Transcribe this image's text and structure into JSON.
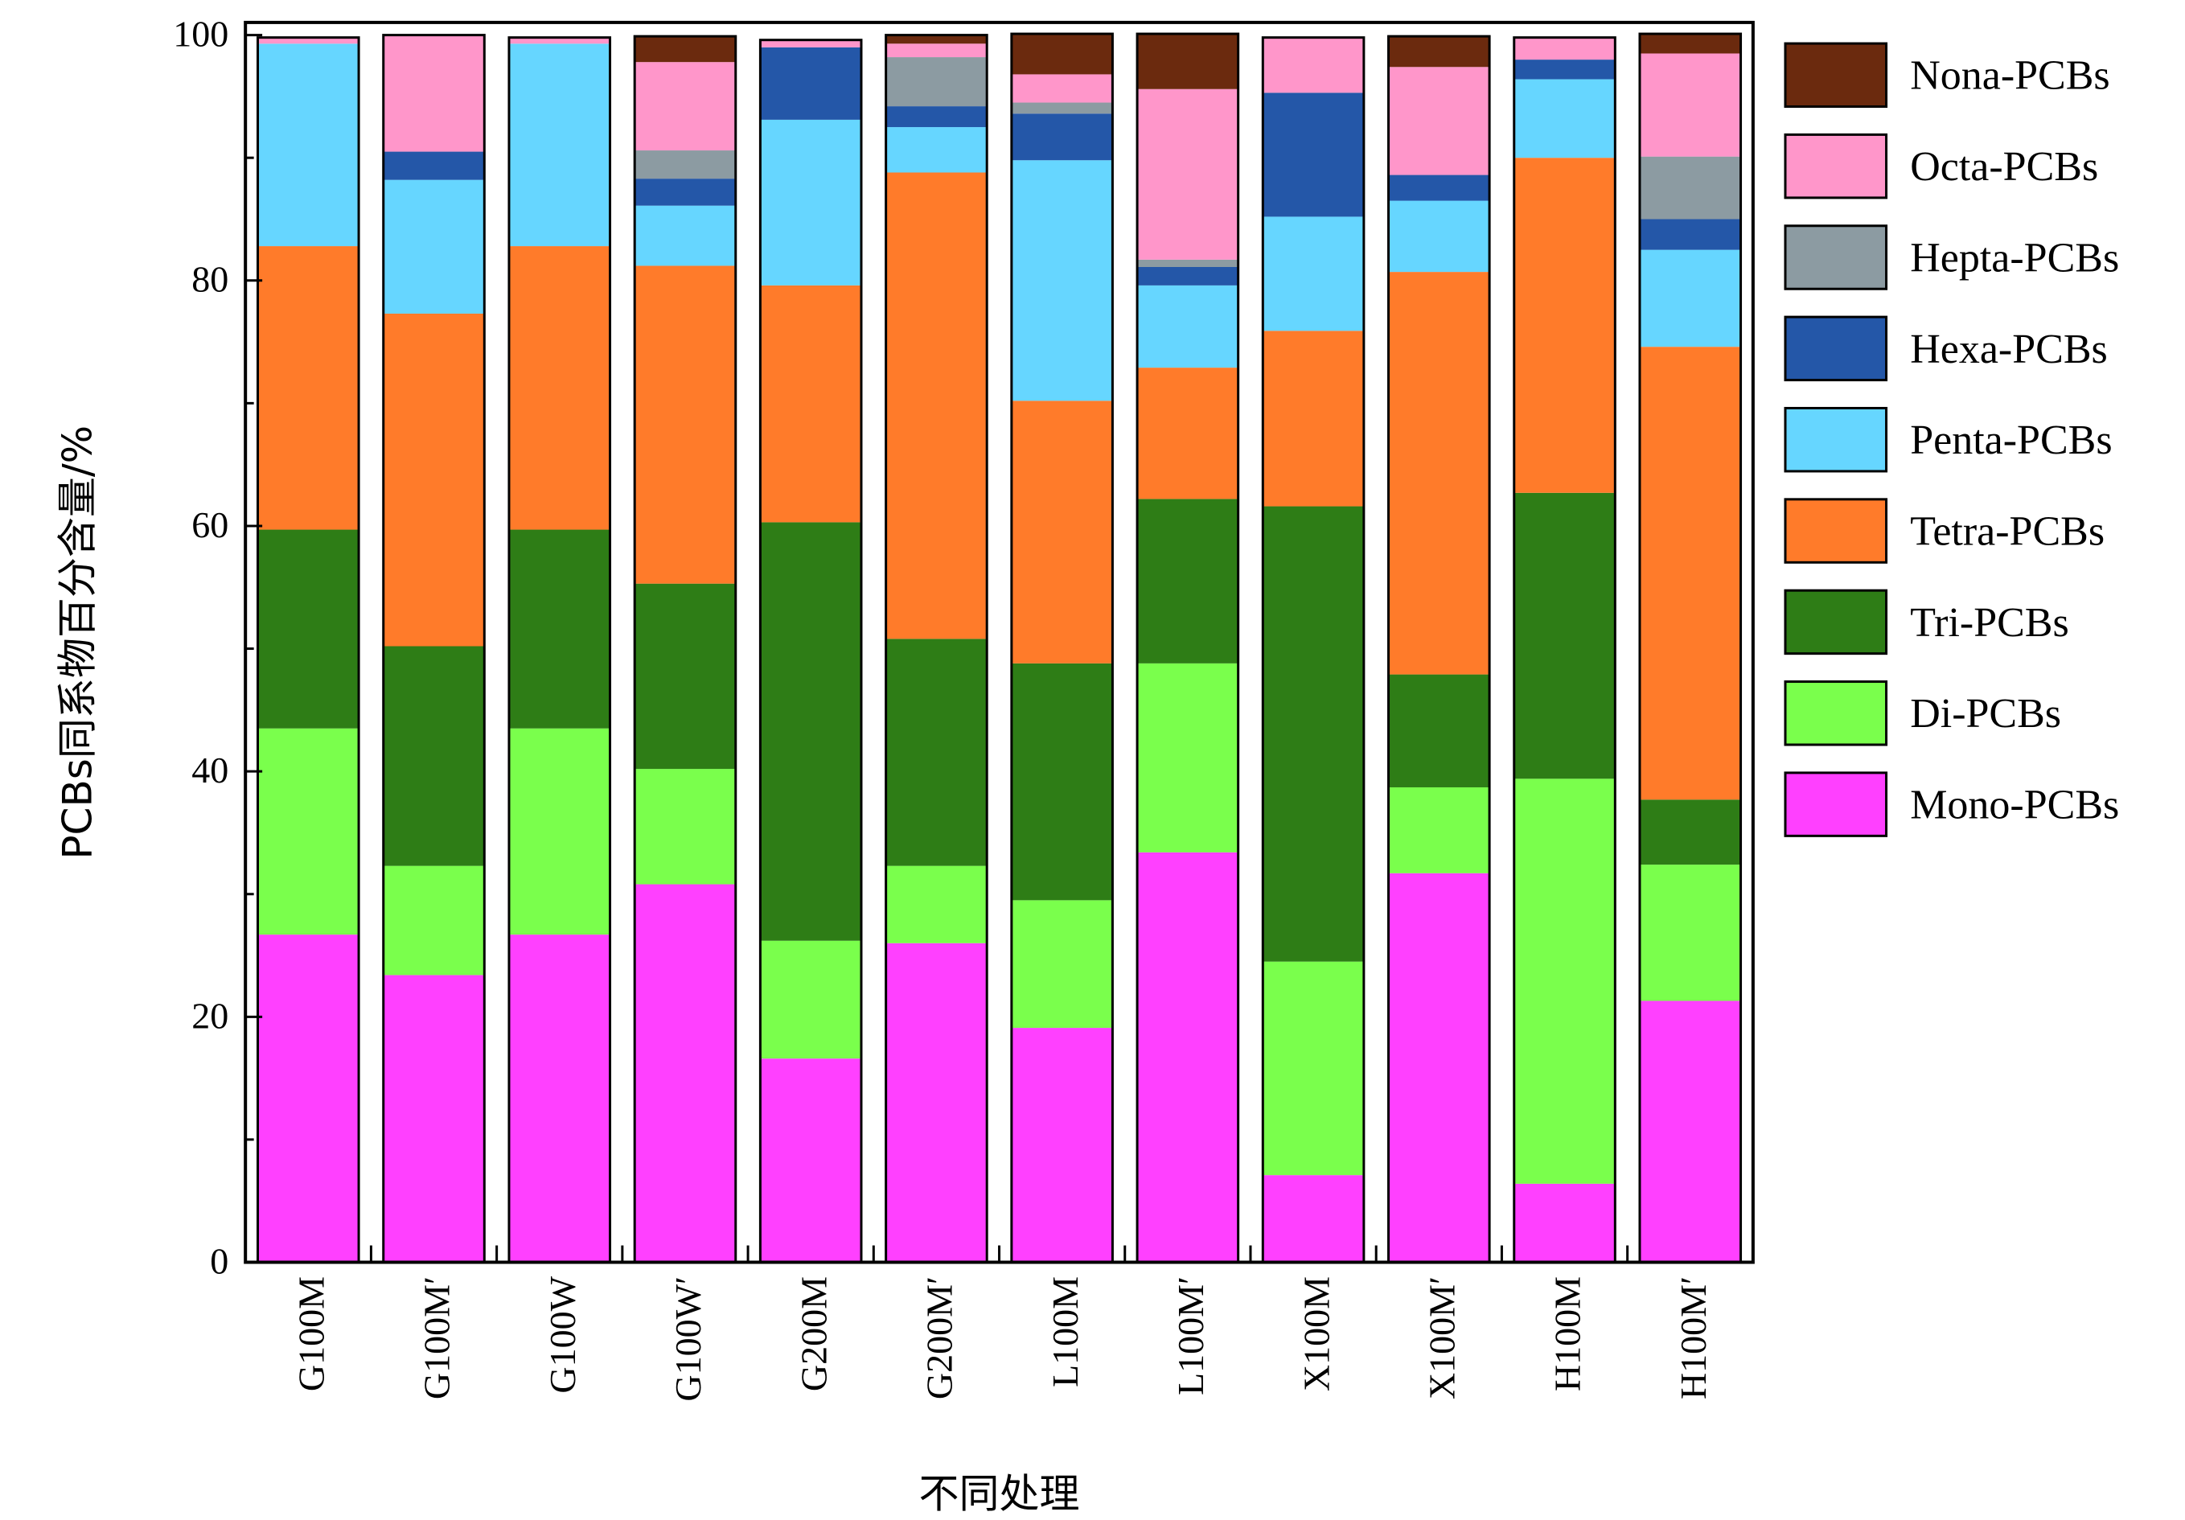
{
  "chart_data": {
    "type": "bar",
    "stacked": true,
    "title": "",
    "xlabel": "不同处理",
    "ylabel": "PCBs同系物百分含量/%",
    "ylim": [
      0,
      100
    ],
    "yticks": [
      0,
      20,
      40,
      60,
      80,
      100
    ],
    "legend_position": "right",
    "grid": false,
    "categories": [
      "G100M",
      "G100M′",
      "G100W",
      "G100W′",
      "G200M",
      "G200M′",
      "L100M",
      "L100M′",
      "X100M",
      "X100M′",
      "H100M",
      "H100M′"
    ],
    "series": [
      {
        "name": "Mono-PCBs",
        "color": "#FF40FF",
        "values": [
          26.7,
          23.4,
          26.7,
          30.8,
          16.6,
          26.0,
          19.1,
          33.4,
          7.1,
          31.7,
          6.4,
          21.3
        ]
      },
      {
        "name": "Di-PCBs",
        "color": "#7AFF4C",
        "values": [
          16.8,
          8.9,
          16.8,
          9.4,
          9.6,
          6.3,
          10.4,
          15.4,
          17.4,
          7.0,
          33.0,
          11.1
        ]
      },
      {
        "name": "Tri-PCBs",
        "color": "#2E7D16",
        "values": [
          16.2,
          17.9,
          16.2,
          15.1,
          34.1,
          18.5,
          19.3,
          13.4,
          37.1,
          9.2,
          23.3,
          5.3
        ]
      },
      {
        "name": "Tetra-PCBs",
        "color": "#FF7B2A",
        "values": [
          23.1,
          27.1,
          23.1,
          25.9,
          19.3,
          38.0,
          21.4,
          10.7,
          14.3,
          32.8,
          27.3,
          36.9
        ]
      },
      {
        "name": "Penta-PCBs",
        "color": "#66D6FF",
        "values": [
          16.5,
          10.9,
          16.5,
          4.9,
          13.5,
          3.7,
          19.6,
          6.7,
          9.3,
          5.8,
          6.4,
          7.9
        ]
      },
      {
        "name": "Hexa-PCBs",
        "color": "#2457A8",
        "values": [
          0,
          2.3,
          0,
          2.2,
          5.9,
          1.7,
          3.8,
          1.5,
          10.1,
          2.1,
          1.6,
          2.5
        ]
      },
      {
        "name": "Hepta-PCBs",
        "color": "#8C9BA2",
        "values": [
          0,
          0,
          0,
          2.3,
          0,
          4.0,
          0.9,
          0.6,
          0,
          0,
          0,
          5.1
        ]
      },
      {
        "name": "Octa-PCBs",
        "color": "#FF96CA",
        "values": [
          0.5,
          9.5,
          0.5,
          7.2,
          0.6,
          1.1,
          2.3,
          13.9,
          4.5,
          8.8,
          1.8,
          8.4
        ]
      },
      {
        "name": "Nona-PCBs",
        "color": "#6B2A0E",
        "values": [
          0,
          0,
          0,
          2.1,
          0,
          0.7,
          3.3,
          4.5,
          0,
          2.5,
          0,
          1.6
        ]
      }
    ]
  }
}
